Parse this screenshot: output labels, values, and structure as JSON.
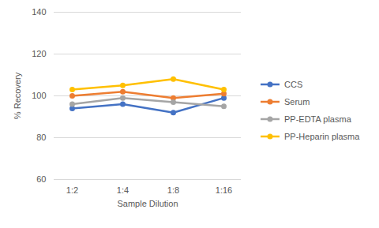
{
  "chart_data": {
    "type": "line",
    "x_label": "Sample Dilution",
    "y_label": "% Recovery",
    "categories": [
      "1:2",
      "1:4",
      "1:8",
      "1:16"
    ],
    "series": [
      {
        "name": "CCS",
        "color": "#4472c4",
        "values": [
          94,
          96,
          92,
          99
        ]
      },
      {
        "name": "Serum",
        "color": "#ed7d31",
        "values": [
          100,
          102,
          99,
          101
        ]
      },
      {
        "name": "PP-EDTA plasma",
        "color": "#a5a5a5",
        "values": [
          96,
          99,
          97,
          95
        ]
      },
      {
        "name": "PP-Heparin plasma",
        "color": "#ffc000",
        "values": [
          103,
          105,
          108,
          103
        ]
      }
    ],
    "ylim": [
      60,
      140
    ],
    "yticks": [
      60,
      80,
      100,
      120,
      140
    ],
    "grid": true,
    "legend": "right",
    "marker": "circle"
  }
}
